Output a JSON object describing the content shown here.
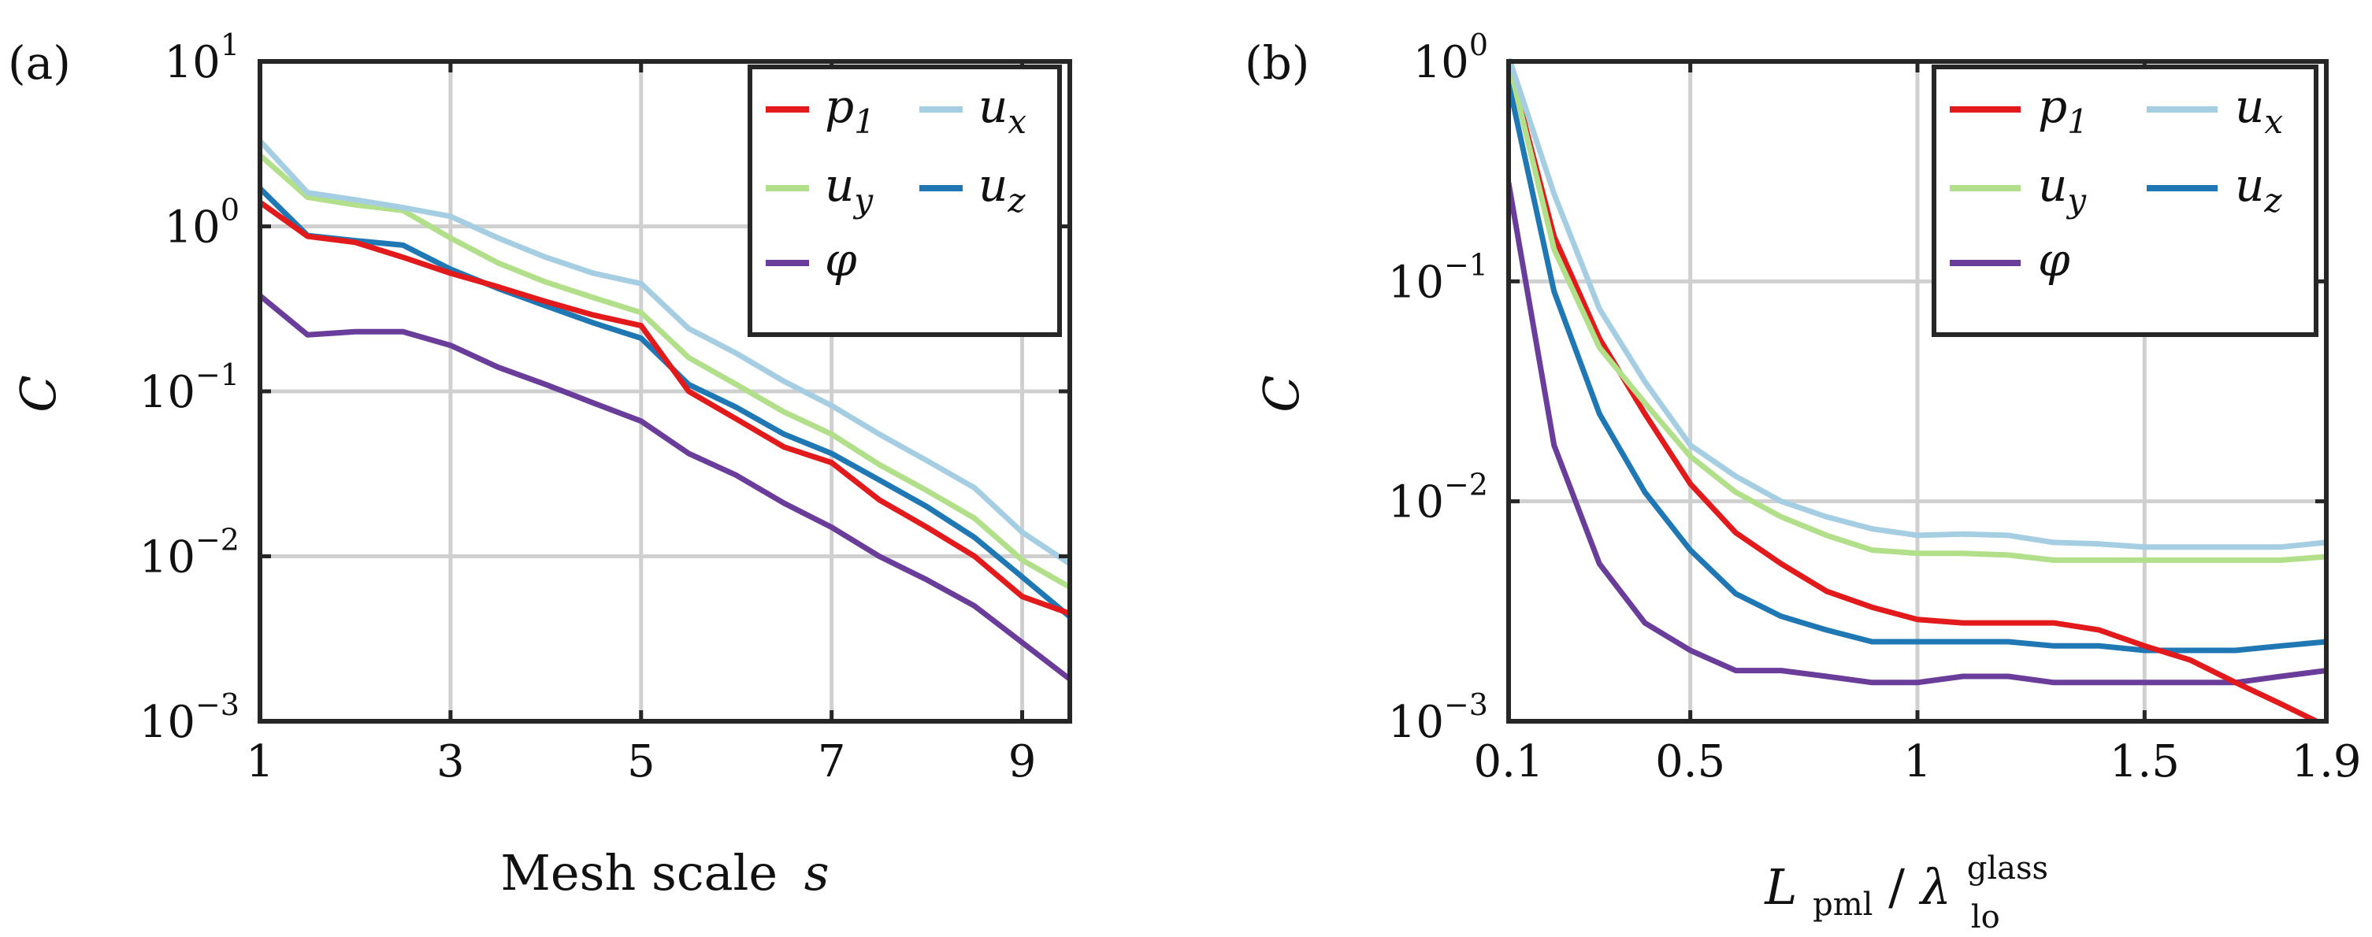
{
  "colors": {
    "p1": "#e31a1c",
    "ux": "#a6cee3",
    "uy": "#b2df8a",
    "uz": "#1f78b4",
    "phi": "#6a3d9a",
    "axis": "#262626",
    "grid": "#d0d0d0"
  },
  "chart_data": [
    {
      "panel_label": "(a)",
      "type": "line",
      "yscale": "log",
      "xlabel": "Mesh scale",
      "xlabel_var": "s",
      "ylabel": "C",
      "xlim": [
        1,
        9.5
      ],
      "ylim": [
        0.001,
        10
      ],
      "xticks": [
        1,
        3,
        5,
        7,
        9
      ],
      "xtick_labels": [
        "1",
        "3",
        "5",
        "7",
        "9"
      ],
      "yticks": [
        {
          "value": 10,
          "base": "10",
          "exp": "1"
        },
        {
          "value": 1,
          "base": "10",
          "exp": "0"
        },
        {
          "value": 0.1,
          "base": "10",
          "exp": "−1"
        },
        {
          "value": 0.01,
          "base": "10",
          "exp": "−2"
        },
        {
          "value": 0.001,
          "base": "10",
          "exp": "−3"
        }
      ],
      "grid": true,
      "legend_position": "top-right",
      "x": [
        1,
        1.5,
        2,
        2.5,
        3,
        3.5,
        4,
        4.5,
        5,
        5.5,
        6,
        6.5,
        7,
        7.5,
        8,
        8.5,
        9,
        9.5
      ],
      "series": [
        {
          "key": "p1",
          "name": "p",
          "sub": "1",
          "color_key": "p1",
          "values": [
            1.4,
            0.87,
            0.8,
            0.65,
            0.52,
            0.43,
            0.35,
            0.29,
            0.25,
            0.1,
            0.068,
            0.046,
            0.037,
            0.022,
            0.015,
            0.01,
            0.0057,
            0.0045
          ]
        },
        {
          "key": "ux",
          "name": "u",
          "sub": "x",
          "color_key": "ux",
          "values": [
            3.3,
            1.6,
            1.45,
            1.3,
            1.15,
            0.85,
            0.65,
            0.52,
            0.45,
            0.24,
            0.17,
            0.115,
            0.082,
            0.055,
            0.038,
            0.026,
            0.014,
            0.009
          ]
        },
        {
          "key": "uy",
          "name": "u",
          "sub": "y",
          "color_key": "uy",
          "values": [
            2.7,
            1.5,
            1.35,
            1.25,
            0.85,
            0.6,
            0.46,
            0.37,
            0.3,
            0.16,
            0.11,
            0.075,
            0.055,
            0.036,
            0.025,
            0.017,
            0.0095,
            0.0065
          ]
        },
        {
          "key": "uz",
          "name": "u",
          "sub": "z",
          "color_key": "uz",
          "values": [
            1.7,
            0.88,
            0.82,
            0.77,
            0.55,
            0.42,
            0.33,
            0.26,
            0.21,
            0.11,
            0.08,
            0.055,
            0.042,
            0.029,
            0.02,
            0.013,
            0.0075,
            0.0043
          ]
        },
        {
          "key": "phi",
          "name": "φ",
          "sub": "",
          "color_key": "phi",
          "values": [
            0.38,
            0.22,
            0.23,
            0.23,
            0.19,
            0.14,
            0.11,
            0.085,
            0.066,
            0.042,
            0.031,
            0.021,
            0.015,
            0.01,
            0.0072,
            0.005,
            0.003,
            0.0018
          ]
        }
      ]
    },
    {
      "panel_label": "(b)",
      "type": "line",
      "yscale": "log",
      "xlabel": "L",
      "xlabel_sub": "pml",
      "xlabel_denominator": "λ",
      "xlabel_denominator_sub": "lo",
      "xlabel_denominator_sup": "glass",
      "ylabel": "C",
      "xlim": [
        0.1,
        1.9
      ],
      "ylim": [
        0.001,
        1
      ],
      "xticks": [
        0.1,
        0.5,
        1,
        1.5,
        1.9
      ],
      "xtick_labels": [
        "0.1",
        "0.5",
        "1",
        "1.5",
        "1.9"
      ],
      "yticks": [
        {
          "value": 1,
          "base": "10",
          "exp": "0"
        },
        {
          "value": 0.1,
          "base": "10",
          "exp": "−1"
        },
        {
          "value": 0.01,
          "base": "10",
          "exp": "−2"
        },
        {
          "value": 0.001,
          "base": "10",
          "exp": "−3"
        }
      ],
      "grid": true,
      "legend_position": "top-right",
      "x": [
        0.1,
        0.2,
        0.3,
        0.4,
        0.5,
        0.6,
        0.7,
        0.8,
        0.9,
        1.0,
        1.1,
        1.2,
        1.3,
        1.4,
        1.5,
        1.6,
        1.7,
        1.8,
        1.9
      ],
      "series": [
        {
          "key": "p1",
          "name": "p",
          "sub": "1",
          "color_key": "p1",
          "values": [
            1.0,
            0.16,
            0.055,
            0.025,
            0.012,
            0.0072,
            0.0052,
            0.0039,
            0.0033,
            0.0029,
            0.0028,
            0.0028,
            0.0028,
            0.0026,
            0.0022,
            0.0019,
            0.0015,
            0.0012,
            0.00095
          ]
        },
        {
          "key": "ux",
          "name": "u",
          "sub": "x",
          "color_key": "ux",
          "values": [
            1.05,
            0.25,
            0.075,
            0.035,
            0.018,
            0.013,
            0.01,
            0.0085,
            0.0075,
            0.007,
            0.0071,
            0.007,
            0.0065,
            0.0064,
            0.0062,
            0.0062,
            0.0062,
            0.0062,
            0.0065
          ]
        },
        {
          "key": "uy",
          "name": "u",
          "sub": "y",
          "color_key": "uy",
          "values": [
            1.0,
            0.14,
            0.05,
            0.028,
            0.016,
            0.011,
            0.0085,
            0.007,
            0.006,
            0.0058,
            0.0058,
            0.0057,
            0.0054,
            0.0054,
            0.0054,
            0.0054,
            0.0054,
            0.0054,
            0.0056
          ]
        },
        {
          "key": "uz",
          "name": "u",
          "sub": "z",
          "color_key": "uz",
          "values": [
            0.8,
            0.09,
            0.025,
            0.011,
            0.006,
            0.0038,
            0.003,
            0.0026,
            0.0023,
            0.0023,
            0.0023,
            0.0023,
            0.0022,
            0.0022,
            0.0021,
            0.0021,
            0.0021,
            0.0022,
            0.0023
          ]
        },
        {
          "key": "phi",
          "name": "φ",
          "sub": "",
          "color_key": "phi",
          "values": [
            0.28,
            0.018,
            0.0052,
            0.0028,
            0.0021,
            0.0017,
            0.0017,
            0.0016,
            0.0015,
            0.0015,
            0.0016,
            0.0016,
            0.0015,
            0.0015,
            0.0015,
            0.0015,
            0.0015,
            0.0016,
            0.0017
          ]
        }
      ]
    }
  ]
}
